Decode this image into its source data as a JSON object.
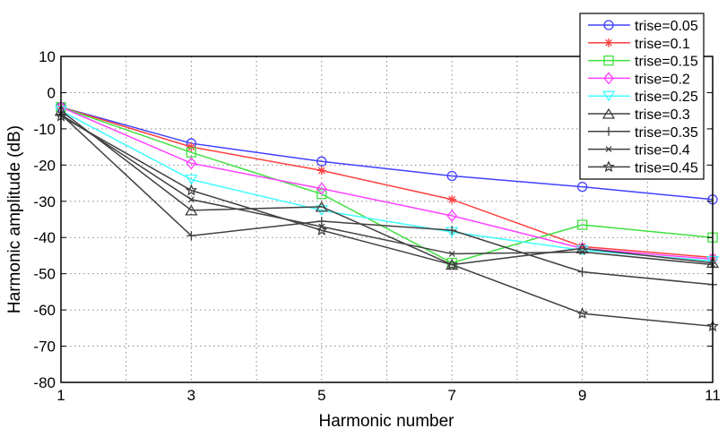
{
  "chart_data": {
    "type": "line",
    "title": "",
    "xlabel": "Harmonic number",
    "ylabel": "Harmonic amplitude (dB)",
    "xlim": [
      1,
      11
    ],
    "ylim": [
      -80,
      10
    ],
    "xticks": [
      1,
      3,
      5,
      7,
      9,
      11
    ],
    "yticks": [
      10,
      0,
      -10,
      -20,
      -30,
      -40,
      -50,
      -60,
      -70,
      -80
    ],
    "grid": true,
    "legend_position": "top-right",
    "x": [
      1,
      3,
      5,
      7,
      9,
      11
    ],
    "series": [
      {
        "name": "trise=0.05",
        "color": "#4040ff",
        "marker": "circle",
        "values": [
          -4,
          -14,
          -19,
          -23,
          -26,
          -29.5
        ]
      },
      {
        "name": "trise=0.1",
        "color": "#ff4040",
        "marker": "asterisk",
        "values": [
          -4,
          -15,
          -21.5,
          -29.5,
          -42.5,
          -45.5
        ]
      },
      {
        "name": "trise=0.15",
        "color": "#40e040",
        "marker": "square",
        "values": [
          -4,
          -16.5,
          -28,
          -47,
          -36.5,
          -40
        ]
      },
      {
        "name": "trise=0.2",
        "color": "#ff40ff",
        "marker": "diamond",
        "values": [
          -4,
          -19.5,
          -26.5,
          -34,
          -43,
          -46
        ]
      },
      {
        "name": "trise=0.25",
        "color": "#40ffff",
        "marker": "triangle-down",
        "values": [
          -5,
          -24,
          -32.5,
          -38.5,
          -43.5,
          -46.5
        ]
      },
      {
        "name": "trise=0.3",
        "color": "#404040",
        "marker": "triangle-up",
        "values": [
          -5,
          -32.5,
          -31.5,
          -47.5,
          -43,
          -47
        ]
      },
      {
        "name": "trise=0.35",
        "color": "#404040",
        "marker": "plus",
        "values": [
          -6,
          -39.5,
          -35.5,
          -38,
          -49.5,
          -53
        ]
      },
      {
        "name": "trise=0.4",
        "color": "#404040",
        "marker": "x",
        "values": [
          -6,
          -29.5,
          -37,
          -44.5,
          -44,
          -47.5
        ]
      },
      {
        "name": "trise=0.45",
        "color": "#404040",
        "marker": "star",
        "values": [
          -6.5,
          -27,
          -38,
          -47.5,
          -61,
          -64.5
        ]
      }
    ]
  }
}
